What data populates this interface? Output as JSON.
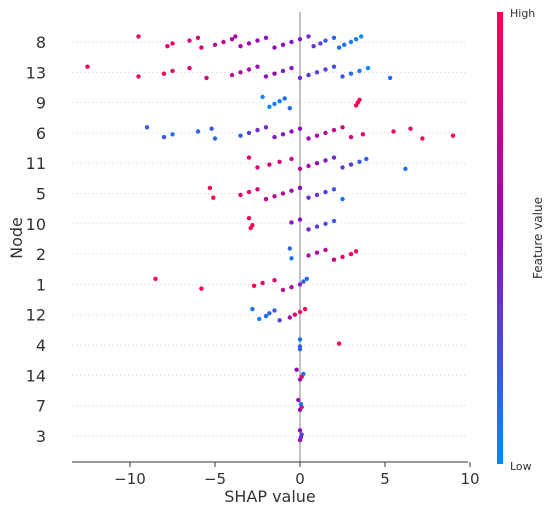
{
  "chart_data": {
    "type": "scatter",
    "subtype": "shap-beeswarm",
    "xlabel": "SHAP value",
    "ylabel": "Node",
    "xlim": [
      -13.5,
      10
    ],
    "xticks": [
      -10,
      -5,
      0,
      5,
      10
    ],
    "xtick_labels": [
      "−10",
      "−5",
      "0",
      "5",
      "10"
    ],
    "categories": [
      "8",
      "13",
      "9",
      "6",
      "11",
      "5",
      "10",
      "2",
      "1",
      "12",
      "4",
      "14",
      "7",
      "3"
    ],
    "grid": "dotted horizontal row lines",
    "colorbar": {
      "label": "Feature value",
      "high_label": "High",
      "low_label": "Low",
      "high_color": "#ff0052",
      "low_color": "#008bfb"
    },
    "series": [
      {
        "category": "8",
        "points": [
          [
            -9.5,
            1.0
          ],
          [
            -7.8,
            0.9
          ],
          [
            -7.5,
            0.9
          ],
          [
            -6.5,
            0.8
          ],
          [
            -6,
            0.8
          ],
          [
            -5.8,
            0.8
          ],
          [
            -5,
            0.7
          ],
          [
            -4.5,
            0.7
          ],
          [
            -4,
            0.6
          ],
          [
            -3.8,
            0.6
          ],
          [
            -3.5,
            0.6
          ],
          [
            -3,
            0.6
          ],
          [
            -2.5,
            0.55
          ],
          [
            -2,
            0.5
          ],
          [
            -1.5,
            0.5
          ],
          [
            -1,
            0.5
          ],
          [
            -0.5,
            0.45
          ],
          [
            0,
            0.45
          ],
          [
            0.5,
            0.4
          ],
          [
            0.8,
            0.35
          ],
          [
            1.2,
            0.3
          ],
          [
            1.5,
            0.2
          ],
          [
            2,
            0.15
          ],
          [
            2.3,
            0.1
          ],
          [
            2.6,
            0.1
          ],
          [
            3,
            0.05
          ],
          [
            3.3,
            0.05
          ],
          [
            3.6,
            0.0
          ]
        ]
      },
      {
        "category": "13",
        "points": [
          [
            -12.5,
            1.0
          ],
          [
            -9.5,
            1.0
          ],
          [
            -8,
            0.95
          ],
          [
            -7.5,
            0.9
          ],
          [
            -6.5,
            0.85
          ],
          [
            -5.5,
            0.8
          ],
          [
            -4,
            0.7
          ],
          [
            -3.5,
            0.65
          ],
          [
            -3,
            0.6
          ],
          [
            -2.5,
            0.55
          ],
          [
            -2,
            0.5
          ],
          [
            -1.5,
            0.5
          ],
          [
            -1,
            0.45
          ],
          [
            -0.5,
            0.45
          ],
          [
            0,
            0.4
          ],
          [
            0.5,
            0.35
          ],
          [
            1,
            0.3
          ],
          [
            1.5,
            0.3
          ],
          [
            2,
            0.25
          ],
          [
            2.5,
            0.2
          ],
          [
            3,
            0.1
          ],
          [
            3.5,
            0.05
          ],
          [
            4,
            0.0
          ],
          [
            5.3,
            0.1
          ]
        ]
      },
      {
        "category": "9",
        "points": [
          [
            -2.2,
            0.0
          ],
          [
            -1.8,
            0.0
          ],
          [
            -1.5,
            0.05
          ],
          [
            -1.2,
            0.05
          ],
          [
            -0.9,
            0.1
          ],
          [
            -0.6,
            0.15
          ],
          [
            3.3,
            0.95
          ],
          [
            3.4,
            1.0
          ],
          [
            3.5,
            0.95
          ]
        ]
      },
      {
        "category": "6",
        "points": [
          [
            -9,
            0.2
          ],
          [
            -8,
            0.2
          ],
          [
            -7.5,
            0.1
          ],
          [
            -6,
            0.15
          ],
          [
            -5.2,
            0.2
          ],
          [
            -5,
            0.15
          ],
          [
            -3.5,
            0.2
          ],
          [
            -3,
            0.3
          ],
          [
            -2.5,
            0.4
          ],
          [
            -2,
            0.4
          ],
          [
            -1.5,
            0.45
          ],
          [
            -1,
            0.45
          ],
          [
            -0.5,
            0.5
          ],
          [
            0,
            0.5
          ],
          [
            0.5,
            0.55
          ],
          [
            1,
            0.6
          ],
          [
            1.5,
            0.65
          ],
          [
            2,
            0.7
          ],
          [
            2.5,
            0.75
          ],
          [
            3,
            0.8
          ],
          [
            3.7,
            0.85
          ],
          [
            5.5,
            0.9
          ],
          [
            6.5,
            0.9
          ],
          [
            7.2,
            0.95
          ],
          [
            9,
            1.0
          ]
        ]
      },
      {
        "category": "11",
        "points": [
          [
            -3,
            0.9
          ],
          [
            -2.5,
            0.85
          ],
          [
            -1.8,
            0.8
          ],
          [
            -1.2,
            0.8
          ],
          [
            -0.5,
            0.7
          ],
          [
            0,
            0.65
          ],
          [
            0.5,
            0.6
          ],
          [
            1,
            0.5
          ],
          [
            1.5,
            0.45
          ],
          [
            2,
            0.4
          ],
          [
            2.5,
            0.35
          ],
          [
            3,
            0.3
          ],
          [
            3.5,
            0.2
          ],
          [
            3.9,
            0.15
          ],
          [
            6.2,
            0.1
          ]
        ]
      },
      {
        "category": "5",
        "points": [
          [
            -5.3,
            1.0
          ],
          [
            -5.1,
            0.95
          ],
          [
            -3.5,
            0.85
          ],
          [
            -3,
            0.85
          ],
          [
            -2.5,
            0.8
          ],
          [
            -2,
            0.75
          ],
          [
            -1.5,
            0.7
          ],
          [
            -1,
            0.65
          ],
          [
            -0.5,
            0.55
          ],
          [
            0,
            0.5
          ],
          [
            0.5,
            0.4
          ],
          [
            1,
            0.35
          ],
          [
            1.5,
            0.3
          ],
          [
            2,
            0.2
          ],
          [
            2.5,
            0.1
          ]
        ]
      },
      {
        "category": "10",
        "points": [
          [
            -3,
            0.95
          ],
          [
            -2.9,
            1.0
          ],
          [
            -2.8,
            0.95
          ],
          [
            -0.5,
            0.5
          ],
          [
            0,
            0.5
          ],
          [
            0.5,
            0.4
          ],
          [
            1,
            0.3
          ],
          [
            1.5,
            0.25
          ],
          [
            2,
            0.2
          ]
        ]
      },
      {
        "category": "2",
        "points": [
          [
            -0.6,
            0.15
          ],
          [
            -0.5,
            0.1
          ],
          [
            0.5,
            0.6
          ],
          [
            1,
            0.65
          ],
          [
            1.5,
            0.7
          ],
          [
            2,
            0.75
          ],
          [
            2.5,
            0.85
          ],
          [
            3,
            0.9
          ],
          [
            3.3,
            1.0
          ]
        ]
      },
      {
        "category": "1",
        "points": [
          [
            -8.5,
            1.0
          ],
          [
            -5.8,
            1.0
          ],
          [
            -2.7,
            0.95
          ],
          [
            -2.2,
            0.9
          ],
          [
            -1.5,
            0.85
          ],
          [
            -1,
            0.7
          ],
          [
            -0.5,
            0.6
          ],
          [
            0,
            0.4
          ],
          [
            0.2,
            0.2
          ],
          [
            0.4,
            0.1
          ]
        ]
      },
      {
        "category": "12",
        "points": [
          [
            -2.8,
            0.1
          ],
          [
            -2.4,
            0.05
          ],
          [
            -2,
            0.1
          ],
          [
            -1.8,
            0.15
          ],
          [
            -1.5,
            0.2
          ],
          [
            -1.2,
            0.3
          ],
          [
            -0.6,
            0.6
          ],
          [
            -0.3,
            0.8
          ],
          [
            0,
            0.9
          ],
          [
            0.3,
            1.0
          ]
        ]
      },
      {
        "category": "4",
        "points": [
          [
            0,
            0.1
          ],
          [
            0,
            0.15
          ],
          [
            0,
            0.2
          ],
          [
            2.3,
            1.0
          ]
        ]
      },
      {
        "category": "14",
        "points": [
          [
            -0.2,
            0.5
          ],
          [
            0,
            0.5
          ],
          [
            0.1,
            0.9
          ],
          [
            0.2,
            0.1
          ]
        ]
      },
      {
        "category": "7",
        "points": [
          [
            -0.1,
            0.5
          ],
          [
            0,
            0.5
          ],
          [
            0.1,
            0.95
          ],
          [
            0.05,
            0.1
          ]
        ]
      },
      {
        "category": "3",
        "points": [
          [
            0,
            0.5
          ],
          [
            0,
            0.55
          ],
          [
            0.05,
            0.4
          ],
          [
            0.1,
            0.3
          ]
        ]
      }
    ]
  }
}
